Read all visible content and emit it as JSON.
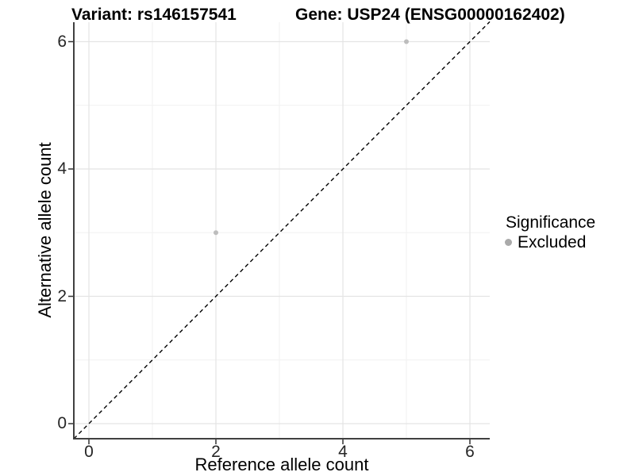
{
  "colors": {
    "point": "#bdbdbd",
    "legend_point": "#aaaaaa",
    "grid_major": "#e4e4e4",
    "grid_minor": "#f1f1f1",
    "axis_line": "#404040",
    "tick_mark": "#333333",
    "reference_line": "#000000",
    "background": "#ffffff"
  },
  "chart_data": {
    "type": "scatter",
    "title_left": "Variant: rs146157541",
    "title_right": "Gene: USP24 (ENSG00000162402)",
    "xlabel": "Reference allele count",
    "ylabel": "Alternative allele count",
    "xlim": [
      -0.24,
      6.31
    ],
    "ylim": [
      -0.24,
      6.31
    ],
    "x_ticks": [
      0,
      2,
      4,
      6
    ],
    "y_ticks": [
      0,
      2,
      4,
      6
    ],
    "x_minor": [
      1,
      3,
      5
    ],
    "y_minor": [
      1,
      3,
      5
    ],
    "grid": true,
    "series": [
      {
        "name": "Excluded",
        "color": "#bdbdbd",
        "points": [
          {
            "x": 2,
            "y": 3
          },
          {
            "x": 5,
            "y": 6
          }
        ]
      }
    ],
    "reference_line": {
      "type": "identity",
      "style": "dashed",
      "color": "#000000"
    },
    "legend": {
      "title": "Significance",
      "position": "right",
      "entries": [
        "Excluded"
      ]
    }
  }
}
